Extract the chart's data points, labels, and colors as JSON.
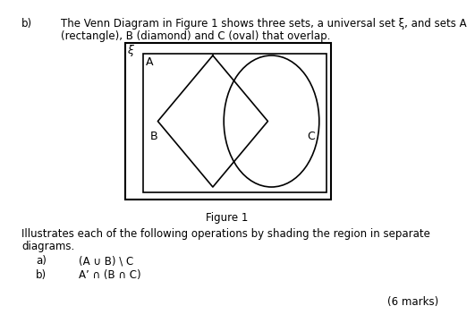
{
  "background_color": "#ffffff",
  "text_color": "#000000",
  "line_color": "#000000",
  "title_b": "b)",
  "main_text_line1": "The Venn Diagram in Figure 1 shows three sets, a universal set ξ, and sets A",
  "main_text_line2": "(rectangle), B (diamond) and C (oval) that overlap.",
  "figure_caption": "Figure 1",
  "illustrates_line1": "Illustrates each of the following operations by shading the region in separate",
  "illustrates_line2": "diagrams.",
  "item_a_label": "a)",
  "item_a_text": "(A ∪ B) \\ C",
  "item_b_label": "b)",
  "item_b_text": "A’ ∩ (B ∩ C)",
  "marks_text": "(6 marks)",
  "xi_symbol": "ξ",
  "label_A": "A",
  "label_B": "B",
  "label_C": "C",
  "font_size_body": 8.5,
  "font_size_labels": 9,
  "font_size_caption": 8.5,
  "font_size_xi": 9
}
